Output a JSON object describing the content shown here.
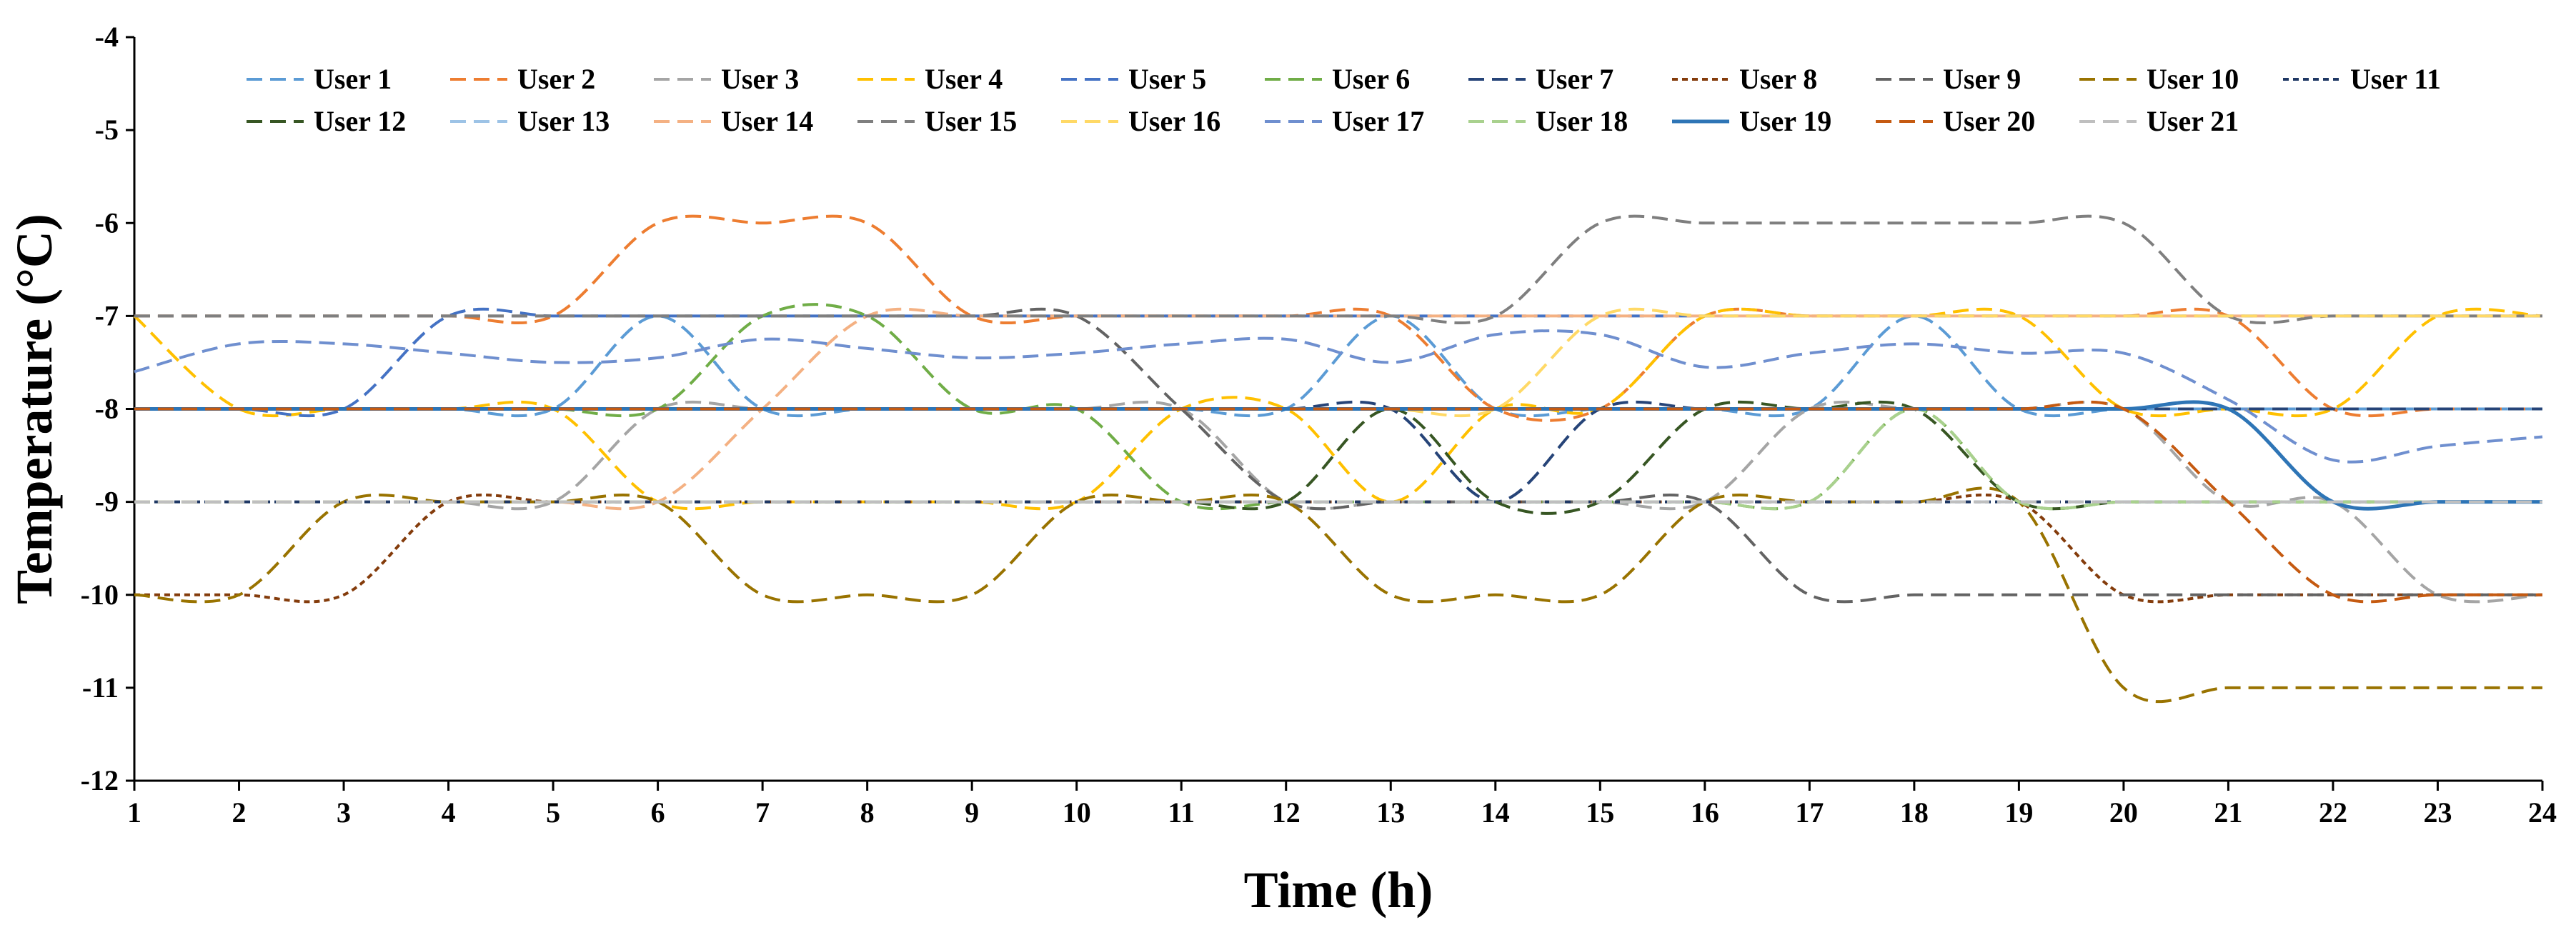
{
  "chart_data": {
    "type": "line",
    "title": "",
    "xlabel": "Time (h)",
    "ylabel": "Temperature (°C)",
    "xlim": [
      1,
      24
    ],
    "ylim": [
      -12,
      -4
    ],
    "x_ticks": [
      1,
      2,
      3,
      4,
      5,
      6,
      7,
      8,
      9,
      10,
      11,
      12,
      13,
      14,
      15,
      16,
      17,
      18,
      19,
      20,
      21,
      22,
      23,
      24
    ],
    "y_ticks": [
      -4,
      -5,
      -6,
      -7,
      -8,
      -9,
      -10,
      -11,
      -12
    ],
    "grid": false,
    "legend_position": "top",
    "x": [
      1,
      2,
      3,
      4,
      5,
      6,
      7,
      8,
      9,
      10,
      11,
      12,
      13,
      14,
      15,
      16,
      17,
      18,
      19,
      20,
      21,
      22,
      23,
      24
    ],
    "series": [
      {
        "name": "User 1",
        "color": "#5B9BD5",
        "dash": "dash",
        "values": [
          -8,
          -8,
          -8,
          -8,
          -8,
          -7,
          -8,
          -8,
          -8,
          -8,
          -8,
          -8,
          -7,
          -8,
          -8,
          -8,
          -8,
          -7,
          -8,
          -8,
          -8,
          -8,
          -8,
          -8
        ]
      },
      {
        "name": "User 2",
        "color": "#ED7D31",
        "dash": "dash",
        "values": [
          -7,
          -7,
          -7,
          -7,
          -7,
          -6,
          -6,
          -6,
          -7,
          -7,
          -7,
          -7,
          -7,
          -8,
          -8,
          -7,
          -7,
          -7,
          -7,
          -7,
          -7,
          -8,
          -8,
          -8
        ]
      },
      {
        "name": "User 3",
        "color": "#A5A5A5",
        "dash": "dash",
        "values": [
          -9,
          -9,
          -9,
          -9,
          -9,
          -8,
          -8,
          -8,
          -8,
          -8,
          -8,
          -9,
          -9,
          -9,
          -9,
          -9,
          -8,
          -8,
          -8,
          -8,
          -9,
          -9,
          -10,
          -10
        ]
      },
      {
        "name": "User 4",
        "color": "#FFC000",
        "dash": "dash",
        "values": [
          -7,
          -8,
          -8,
          -8,
          -8,
          -9,
          -9,
          -9,
          -9,
          -9,
          -8,
          -8,
          -9,
          -8,
          -8,
          -7,
          -7,
          -7,
          -7,
          -8,
          -8,
          -8,
          -7,
          -7
        ]
      },
      {
        "name": "User 5",
        "color": "#4472C4",
        "dash": "dash",
        "values": [
          -8,
          -8,
          -8,
          -7,
          -7,
          -7,
          -7,
          -7,
          -7,
          -7,
          -7,
          -7,
          -7,
          -7,
          -7,
          -7,
          -7,
          -7,
          -7,
          -7,
          -7,
          -7,
          -7,
          -7
        ]
      },
      {
        "name": "User 6",
        "color": "#70AD47",
        "dash": "dash",
        "values": [
          -8,
          -8,
          -8,
          -8,
          -8,
          -8,
          -7,
          -7,
          -8,
          -8,
          -9,
          -9,
          -9,
          -9,
          -9,
          -9,
          -9,
          -8,
          -9,
          -9,
          -9,
          -9,
          -9,
          -9
        ]
      },
      {
        "name": "User 7",
        "color": "#264478",
        "dash": "dash",
        "values": [
          -8,
          -8,
          -8,
          -8,
          -8,
          -8,
          -8,
          -8,
          -8,
          -8,
          -8,
          -8,
          -8,
          -9,
          -8,
          -8,
          -8,
          -8,
          -8,
          -8,
          -8,
          -8,
          -8,
          -8
        ]
      },
      {
        "name": "User 8",
        "color": "#843C0C",
        "dash": "dot",
        "values": [
          -10,
          -10,
          -10,
          -9,
          -9,
          -9,
          -9,
          -9,
          -9,
          -9,
          -9,
          -9,
          -9,
          -9,
          -9,
          -9,
          -9,
          -9,
          -9,
          -10,
          -10,
          -10,
          -10,
          -10
        ]
      },
      {
        "name": "User 9",
        "color": "#636363",
        "dash": "dash",
        "values": [
          -7,
          -7,
          -7,
          -7,
          -7,
          -7,
          -7,
          -7,
          -7,
          -7,
          -8,
          -9,
          -9,
          -9,
          -9,
          -9,
          -10,
          -10,
          -10,
          -10,
          -10,
          -10,
          -10,
          -10
        ]
      },
      {
        "name": "User 10",
        "color": "#997300",
        "dash": "dash",
        "values": [
          -10,
          -10,
          -9,
          -9,
          -9,
          -9,
          -10,
          -10,
          -10,
          -9,
          -9,
          -9,
          -10,
          -10,
          -10,
          -9,
          -9,
          -9,
          -9,
          -11,
          -11,
          -11,
          -11,
          -11
        ]
      },
      {
        "name": "User 11",
        "color": "#1F3864",
        "dash": "dot",
        "values": [
          -9,
          -9,
          -9,
          -9,
          -9,
          -9,
          -9,
          -9,
          -9,
          -9,
          -9,
          -9,
          -9,
          -9,
          -9,
          -9,
          -9,
          -9,
          -9,
          -9,
          -9,
          -9,
          -9,
          -9
        ]
      },
      {
        "name": "User 12",
        "color": "#375623",
        "dash": "dash",
        "values": [
          -9,
          -9,
          -9,
          -9,
          -9,
          -9,
          -9,
          -9,
          -9,
          -9,
          -9,
          -9,
          -8,
          -9,
          -9,
          -8,
          -8,
          -8,
          -9,
          -9,
          -9,
          -9,
          -9,
          -9
        ]
      },
      {
        "name": "User 13",
        "color": "#9DC3E6",
        "dash": "dash",
        "values": [
          -9,
          -9,
          -9,
          -9,
          -9,
          -9,
          -9,
          -9,
          -9,
          -9,
          -9,
          -9,
          -9,
          -9,
          -9,
          -9,
          -9,
          -9,
          -9,
          -9,
          -9,
          -9,
          -9,
          -9
        ]
      },
      {
        "name": "User 14",
        "color": "#F4B183",
        "dash": "dash",
        "values": [
          -9,
          -9,
          -9,
          -9,
          -9,
          -9,
          -8,
          -7,
          -7,
          -7,
          -7,
          -7,
          -7,
          -7,
          -7,
          -7,
          -7,
          -7,
          -7,
          -7,
          -7,
          -7,
          -7,
          -7
        ]
      },
      {
        "name": "User 15",
        "color": "#7F7F7F",
        "dash": "dash",
        "values": [
          -7,
          -7,
          -7,
          -7,
          -7,
          -7,
          -7,
          -7,
          -7,
          -7,
          -7,
          -7,
          -7,
          -7,
          -6,
          -6,
          -6,
          -6,
          -6,
          -6,
          -7,
          -7,
          -7,
          -7
        ]
      },
      {
        "name": "User 16",
        "color": "#FFD966",
        "dash": "dash",
        "values": [
          -8,
          -8,
          -8,
          -8,
          -8,
          -8,
          -8,
          -8,
          -8,
          -8,
          -8,
          -8,
          -8,
          -8,
          -7,
          -7,
          -7,
          -7,
          -7,
          -7,
          -7,
          -7,
          -7,
          -7
        ]
      },
      {
        "name": "User 17",
        "color": "#6F8FCF",
        "dash": "dash",
        "values": [
          -7.6,
          -7.3,
          -7.3,
          -7.4,
          -7.5,
          -7.45,
          -7.25,
          -7.35,
          -7.45,
          -7.4,
          -7.3,
          -7.25,
          -7.5,
          -7.2,
          -7.2,
          -7.55,
          -7.4,
          -7.3,
          -7.4,
          -7.4,
          -7.9,
          -8.55,
          -8.4,
          -8.3
        ]
      },
      {
        "name": "User 18",
        "color": "#A9D18E",
        "dash": "dash",
        "values": [
          -9,
          -9,
          -9,
          -9,
          -9,
          -9,
          -9,
          -9,
          -9,
          -9,
          -9,
          -9,
          -9,
          -9,
          -9,
          -9,
          -9,
          -8,
          -9,
          -9,
          -9,
          -9,
          -9,
          -9
        ]
      },
      {
        "name": "User 19",
        "color": "#2E75B6",
        "dash": "solid",
        "values": [
          -8,
          -8,
          -8,
          -8,
          -8,
          -8,
          -8,
          -8,
          -8,
          -8,
          -8,
          -8,
          -8,
          -8,
          -8,
          -8,
          -8,
          -8,
          -8,
          -8,
          -8,
          -9,
          -9,
          -9
        ]
      },
      {
        "name": "User 20",
        "color": "#C55A11",
        "dash": "dash",
        "values": [
          -8,
          -8,
          -8,
          -8,
          -8,
          -8,
          -8,
          -8,
          -8,
          -8,
          -8,
          -8,
          -8,
          -8,
          -8,
          -8,
          -8,
          -8,
          -8,
          -8,
          -9,
          -10,
          -10,
          -10
        ]
      },
      {
        "name": "User 21",
        "color": "#BFBFBF",
        "dash": "dash",
        "values": [
          -9,
          -9,
          -9,
          -9,
          -9,
          -9,
          -9,
          -9,
          -9,
          -9,
          -9,
          -9,
          -9,
          -9,
          -9,
          -9,
          -9,
          -9,
          -9,
          -9,
          -9,
          -9,
          -9,
          -9
        ]
      }
    ]
  }
}
